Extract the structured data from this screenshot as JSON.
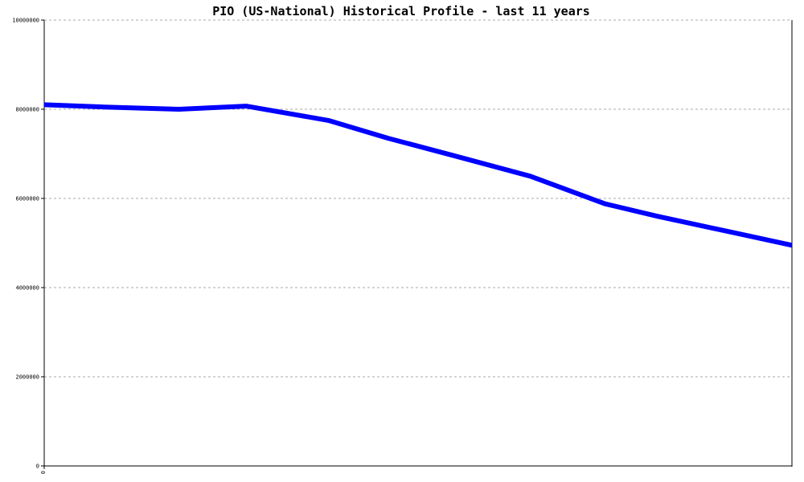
{
  "chart_data": {
    "type": "line",
    "title": "PIO (US-National) Historical Profile - last 11 years",
    "xlabel": "",
    "ylabel": "",
    "ylim": [
      0,
      10000000
    ],
    "yticks": [
      0,
      2000000,
      4000000,
      6000000,
      8000000,
      10000000
    ],
    "ytick_labels": [
      "0",
      "2000000",
      "4000000",
      "6000000",
      "8000000",
      "10000000"
    ],
    "xtick_labels": [
      "0"
    ],
    "grid": true,
    "series": [
      {
        "color": "#0000ff",
        "x": [
          0,
          0.08,
          0.18,
          0.27,
          0.38,
          0.46,
          0.55,
          0.65,
          0.75,
          0.82,
          0.92,
          1.0
        ],
        "values": [
          8100000,
          8050000,
          8000000,
          8070000,
          7750000,
          7350000,
          6950000,
          6500000,
          5880000,
          5600000,
          5240000,
          4950000
        ]
      }
    ]
  }
}
